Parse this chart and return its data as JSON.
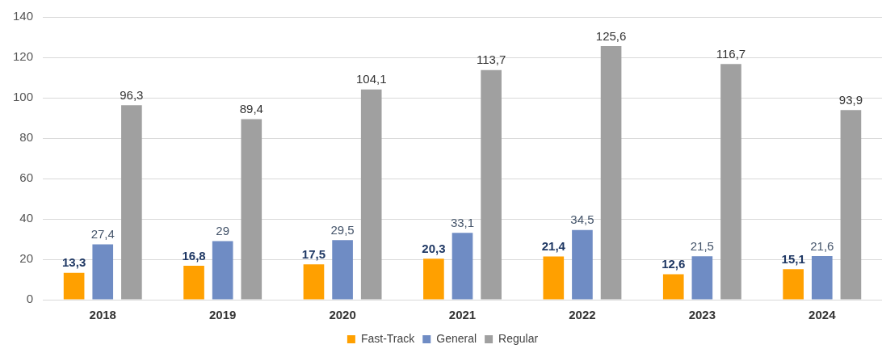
{
  "chart_data": {
    "type": "bar",
    "categories": [
      "2018",
      "2019",
      "2020",
      "2021",
      "2022",
      "2023",
      "2024"
    ],
    "series": [
      {
        "name": "Fast-Track",
        "color": "#ffa000",
        "values": [
          13.3,
          16.8,
          17.5,
          20.3,
          21.4,
          12.6,
          15.1
        ],
        "value_labels": [
          "13,3",
          "16,8",
          "17,5",
          "20,3",
          "21,4",
          "12,6",
          "15,1"
        ]
      },
      {
        "name": "General",
        "color": "#6f8cc4",
        "values": [
          27.4,
          29,
          29.5,
          33.1,
          34.5,
          21.5,
          21.6
        ],
        "value_labels": [
          "27,4",
          "29",
          "29,5",
          "33,1",
          "34,5",
          "21,5",
          "21,6"
        ]
      },
      {
        "name": "Regular",
        "color": "#a0a0a0",
        "values": [
          96.3,
          89.4,
          104.1,
          113.7,
          125.6,
          116.7,
          93.9
        ],
        "value_labels": [
          "96,3",
          "89,4",
          "104,1",
          "113,7",
          "125,6",
          "116,7",
          "93,9"
        ]
      }
    ],
    "ylim": [
      0,
      140
    ],
    "yticks": [
      0,
      20,
      40,
      60,
      80,
      100,
      120,
      140
    ],
    "grid": "y",
    "legend": "bottom"
  }
}
